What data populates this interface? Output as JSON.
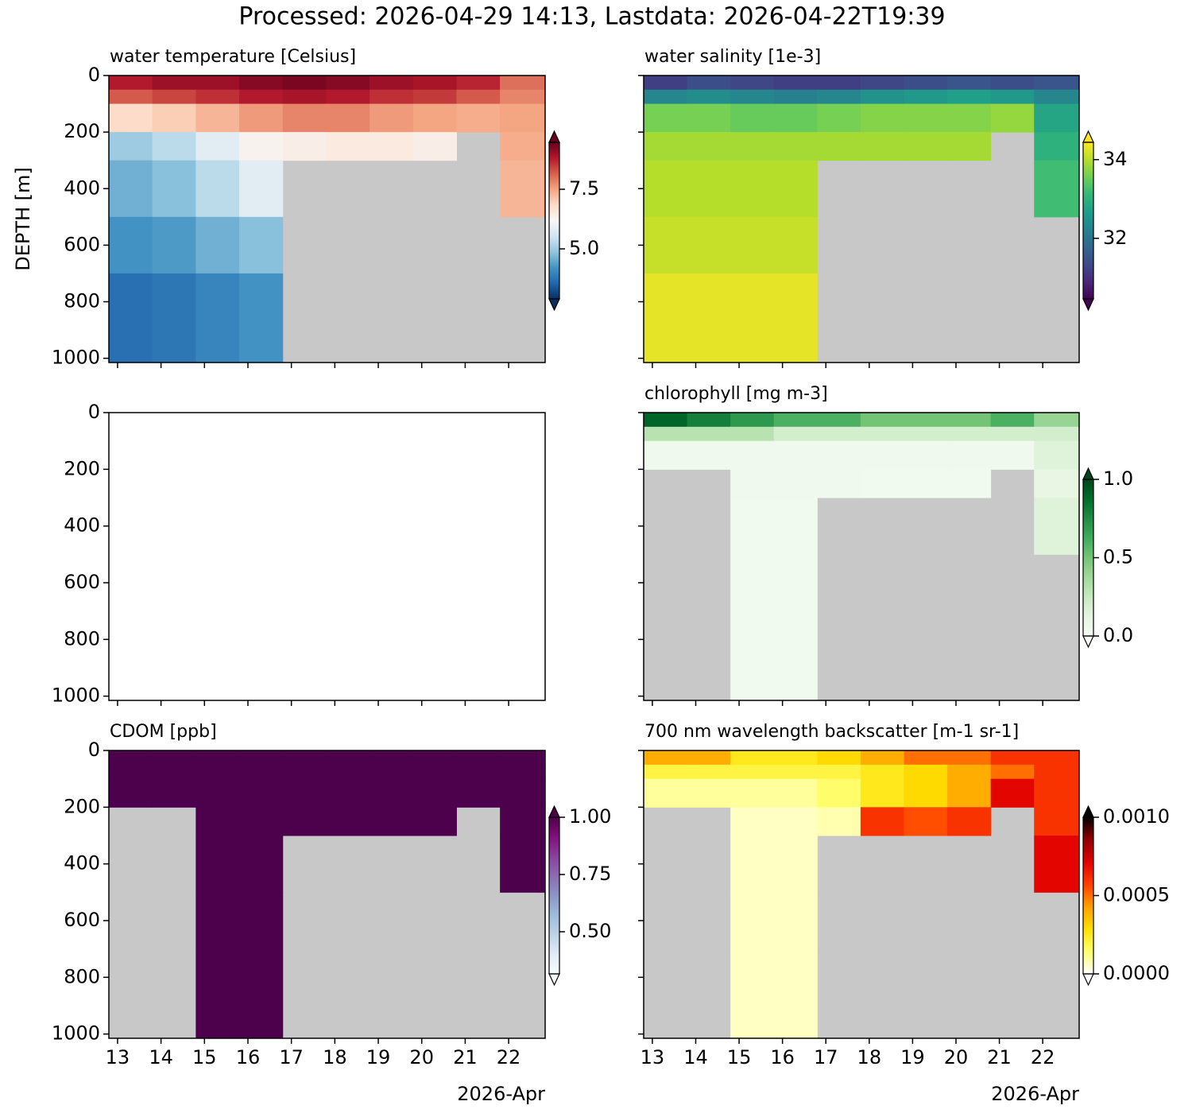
{
  "title": "Processed: 2026-04-29 14:13, Lastdata: 2026-04-22T19:39",
  "chart_data": [
    {
      "type": "heatmap",
      "title": "water temperature [Celsius]",
      "ylabel": "DEPTH [m]",
      "xlim": [
        12.8,
        22.84
      ],
      "ylim": [
        1015,
        0
      ],
      "xticks": [
        13,
        14,
        15,
        16,
        17,
        18,
        19,
        20,
        21,
        22
      ],
      "yticks": [
        0,
        200,
        400,
        600,
        800,
        1000
      ],
      "xtick_labels": false,
      "ytick_labels": true,
      "x_bins": [
        12.8,
        13.8,
        14.8,
        15.8,
        16.8,
        17.8,
        18.8,
        19.8,
        20.8,
        21.8,
        22.84
      ],
      "depth_bins": [
        0,
        50,
        100,
        200,
        300,
        500,
        700,
        1015
      ],
      "values": [
        [
          8.8,
          9.0,
          9.0,
          9.2,
          9.3,
          9.2,
          9.0,
          8.9,
          8.7,
          8.0
        ],
        [
          8.2,
          8.4,
          8.6,
          8.8,
          8.9,
          8.8,
          8.6,
          8.5,
          8.2,
          7.8
        ],
        [
          6.8,
          7.0,
          7.3,
          7.6,
          7.8,
          7.8,
          7.6,
          7.5,
          7.4,
          7.5
        ],
        [
          5.0,
          5.3,
          5.8,
          6.3,
          6.4,
          6.5,
          6.5,
          6.4,
          null,
          7.4
        ],
        [
          4.6,
          4.8,
          5.3,
          5.8,
          null,
          null,
          null,
          null,
          null,
          7.3
        ],
        [
          4.2,
          4.3,
          4.6,
          4.8,
          null,
          null,
          null,
          null,
          null,
          null
        ],
        [
          3.7,
          3.8,
          4.0,
          4.2,
          null,
          null,
          null,
          null,
          null,
          null
        ]
      ],
      "colorbar": {
        "colormap": "RdBu_r",
        "clim": [
          2.9,
          9.47
        ],
        "ticks": [
          {
            "value": 5,
            "label": "5.0"
          },
          7.5
        ]
      }
    },
    {
      "type": "heatmap",
      "title": "water salinity [1e-3]",
      "xlim": [
        12.8,
        22.84
      ],
      "ylim": [
        1015,
        0
      ],
      "xticks": [
        13,
        14,
        15,
        16,
        17,
        18,
        19,
        20,
        21,
        22
      ],
      "yticks": [
        0,
        200,
        400,
        600,
        800,
        1000
      ],
      "xtick_labels": false,
      "ytick_labels": false,
      "x_bins": [
        12.8,
        13.8,
        14.8,
        15.8,
        16.8,
        17.8,
        18.8,
        19.8,
        20.8,
        21.8,
        22.84
      ],
      "depth_bins": [
        0,
        50,
        100,
        200,
        300,
        500,
        700,
        1015
      ],
      "values": [
        [
          31.2,
          31.4,
          31.3,
          31.2,
          31.2,
          31.3,
          31.4,
          31.5,
          31.4,
          31.5
        ],
        [
          32.3,
          32.4,
          32.3,
          32.2,
          32.3,
          32.5,
          32.6,
          32.7,
          32.6,
          32.3
        ],
        [
          33.6,
          33.6,
          33.5,
          33.5,
          33.6,
          33.7,
          33.7,
          33.7,
          33.8,
          32.8
        ],
        [
          33.9,
          33.9,
          33.9,
          33.9,
          33.9,
          33.9,
          33.9,
          33.9,
          null,
          33.0
        ],
        [
          34.0,
          34.0,
          34.0,
          34.0,
          null,
          null,
          null,
          null,
          null,
          33.2
        ],
        [
          34.1,
          34.1,
          34.1,
          34.1,
          null,
          null,
          null,
          null,
          null,
          null
        ],
        [
          34.3,
          34.3,
          34.3,
          34.3,
          null,
          null,
          null,
          null,
          null,
          null
        ]
      ],
      "colorbar": {
        "colormap": "viridis",
        "clim": [
          30.46,
          34.44
        ],
        "ticks": [
          32,
          34
        ]
      }
    },
    {
      "type": "heatmap",
      "xlim": [
        12.8,
        22.84
      ],
      "ylim": [
        1015,
        0
      ],
      "xticks": [
        13,
        14,
        15,
        16,
        17,
        18,
        19,
        20,
        21,
        22
      ],
      "yticks": [
        0,
        200,
        400,
        600,
        800,
        1000
      ],
      "xtick_labels": false,
      "ytick_labels": true
    },
    {
      "type": "heatmap",
      "title": "chlorophyll [mg m-3]",
      "xlim": [
        12.8,
        22.84
      ],
      "ylim": [
        1015,
        0
      ],
      "xticks": [
        13,
        14,
        15,
        16,
        17,
        18,
        19,
        20,
        21,
        22
      ],
      "yticks": [
        0,
        200,
        400,
        600,
        800,
        1000
      ],
      "xtick_labels": false,
      "ytick_labels": false,
      "x_bins": [
        12.8,
        13.8,
        14.8,
        15.8,
        16.8,
        17.8,
        18.8,
        19.8,
        20.8,
        21.8,
        22.84
      ],
      "depth_bins": [
        0,
        50,
        100,
        200,
        300,
        500,
        700,
        1015
      ],
      "values": [
        [
          0.9,
          0.8,
          0.7,
          0.6,
          0.6,
          0.5,
          0.5,
          0.5,
          0.6,
          0.4
        ],
        [
          0.3,
          0.3,
          0.3,
          0.2,
          0.2,
          0.2,
          0.2,
          0.2,
          0.2,
          0.2
        ],
        [
          0.05,
          0.05,
          0.05,
          0.05,
          0.05,
          0.05,
          0.05,
          0.05,
          0.05,
          0.15
        ],
        [
          null,
          null,
          0.05,
          0.05,
          0.05,
          0.04,
          0.04,
          0.04,
          null,
          0.1
        ],
        [
          null,
          null,
          0.04,
          0.04,
          null,
          null,
          null,
          null,
          null,
          0.15
        ],
        [
          null,
          null,
          0.04,
          0.04,
          null,
          null,
          null,
          null,
          null,
          null
        ],
        [
          null,
          null,
          0.04,
          0.04,
          null,
          null,
          null,
          null,
          null,
          null
        ]
      ],
      "colorbar": {
        "colormap": "Greens",
        "clim": [
          0,
          1
        ],
        "ticks": [
          {
            "value": 0,
            "label": "0.0"
          },
          0.5,
          {
            "value": 1,
            "label": "1.0"
          }
        ]
      }
    },
    {
      "type": "heatmap",
      "title": "CDOM [ppb]",
      "xlabel": "2026-Apr",
      "xlim": [
        12.8,
        22.84
      ],
      "ylim": [
        1015,
        0
      ],
      "xticks": [
        13,
        14,
        15,
        16,
        17,
        18,
        19,
        20,
        21,
        22
      ],
      "yticks": [
        0,
        200,
        400,
        600,
        800,
        1000
      ],
      "xtick_labels": true,
      "ytick_labels": true,
      "x_bins": [
        12.8,
        13.8,
        14.8,
        15.8,
        16.8,
        17.8,
        18.8,
        19.8,
        20.8,
        21.8,
        22.84
      ],
      "depth_bins": [
        0,
        50,
        100,
        200,
        300,
        500,
        700,
        1015
      ],
      "values": [
        [
          1.05,
          1.05,
          1.05,
          1.05,
          1.05,
          1.05,
          1.05,
          1.05,
          1.05,
          1.05
        ],
        [
          1.05,
          1.05,
          1.05,
          1.05,
          1.05,
          1.05,
          1.05,
          1.05,
          1.05,
          1.05
        ],
        [
          1.05,
          1.05,
          1.05,
          1.05,
          1.05,
          1.05,
          1.05,
          1.05,
          1.05,
          1.05
        ],
        [
          null,
          null,
          1.05,
          1.05,
          1.05,
          1.05,
          1.05,
          1.05,
          null,
          1.05
        ],
        [
          null,
          null,
          1.05,
          1.05,
          null,
          null,
          null,
          null,
          null,
          1.05
        ],
        [
          null,
          null,
          1.05,
          1.05,
          null,
          null,
          null,
          null,
          null,
          null
        ],
        [
          null,
          null,
          1.05,
          1.05,
          null,
          null,
          null,
          null,
          null,
          null
        ]
      ],
      "colorbar": {
        "colormap": "BuPu",
        "clim": [
          0.316,
          1.0
        ],
        "ticks": [
          {
            "value": 0.5,
            "label": "0.50"
          },
          0.75,
          {
            "value": 1,
            "label": "1.00"
          }
        ]
      }
    },
    {
      "type": "heatmap",
      "title": "700 nm wavelength backscatter [m-1 sr-1]",
      "xlabel": "2026-Apr",
      "xlim": [
        12.8,
        22.84
      ],
      "ylim": [
        1015,
        0
      ],
      "xticks": [
        13,
        14,
        15,
        16,
        17,
        18,
        19,
        20,
        21,
        22
      ],
      "yticks": [
        0,
        200,
        400,
        600,
        800,
        1000
      ],
      "xtick_labels": true,
      "ytick_labels": false,
      "x_bins": [
        12.8,
        13.8,
        14.8,
        15.8,
        16.8,
        17.8,
        18.8,
        19.8,
        20.8,
        21.8,
        22.84
      ],
      "depth_bins": [
        0,
        50,
        100,
        200,
        300,
        500,
        700,
        1015
      ],
      "values": [
        [
          0.0004,
          0.0004,
          0.00025,
          0.00025,
          0.0003,
          0.0004,
          0.0005,
          0.0005,
          0.0006,
          0.0006
        ],
        [
          0.0002,
          0.0002,
          0.0002,
          0.0002,
          0.0002,
          0.00025,
          0.0003,
          0.0004,
          0.0005,
          0.0006
        ],
        [
          0.0001,
          0.0001,
          0.0001,
          0.0001,
          0.00015,
          0.00025,
          0.0003,
          0.0004,
          0.0007,
          0.0006
        ],
        [
          null,
          null,
          6e-05,
          6e-05,
          8e-05,
          0.0006,
          0.00055,
          0.0006,
          null,
          0.0006
        ],
        [
          null,
          null,
          6e-05,
          6e-05,
          null,
          null,
          null,
          null,
          null,
          0.0007
        ],
        [
          null,
          null,
          6e-05,
          6e-05,
          null,
          null,
          null,
          null,
          null,
          null
        ],
        [
          null,
          null,
          6e-05,
          6e-05,
          null,
          null,
          null,
          null,
          null,
          null
        ]
      ],
      "colorbar": {
        "colormap": "hot_r",
        "clim": [
          0,
          0.001
        ],
        "ticks": [
          {
            "value": 0,
            "label": "0.0000"
          },
          {
            "value": 0.0005,
            "label": "0.0005"
          },
          {
            "value": 0.001,
            "label": "0.0010"
          }
        ]
      }
    }
  ]
}
